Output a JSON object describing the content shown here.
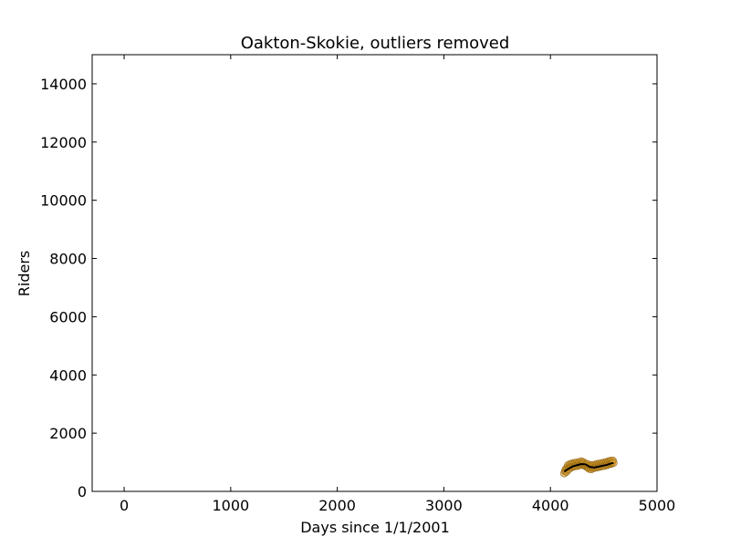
{
  "chart_data": {
    "type": "scatter",
    "title": "Oakton-Skokie, outliers removed",
    "xlabel": "Days since 1/1/2001",
    "ylabel": "Riders",
    "xlim": [
      -300,
      5000
    ],
    "ylim": [
      0,
      15000
    ],
    "x_ticks": [
      0,
      1000,
      2000,
      3000,
      4000,
      5000
    ],
    "y_ticks": [
      0,
      2000,
      4000,
      6000,
      8000,
      10000,
      12000,
      14000
    ],
    "grid": false,
    "legend": "none",
    "colors": {
      "points": "#d49a2a",
      "points_edge": "#8a6110",
      "smooth": "#000000"
    },
    "series": [
      {
        "kind": "scatter",
        "x": [
          4130,
          4137,
          4144,
          4151,
          4158,
          4165,
          4172,
          4179,
          4186,
          4193,
          4200,
          4207,
          4214,
          4221,
          4228,
          4235,
          4242,
          4249,
          4256,
          4263,
          4270,
          4277,
          4284,
          4291,
          4298,
          4305,
          4312,
          4319,
          4326,
          4333,
          4340,
          4347,
          4354,
          4361,
          4368,
          4375,
          4382,
          4389,
          4396,
          4403,
          4410,
          4417,
          4424,
          4431,
          4438,
          4445,
          4452,
          4459,
          4466,
          4473,
          4480,
          4487,
          4494,
          4501,
          4508,
          4515,
          4522,
          4529,
          4536,
          4543,
          4550,
          4557,
          4564,
          4571,
          4578,
          4585,
          4592
        ],
        "y": [
          620,
          700,
          760,
          680,
          820,
          900,
          760,
          850,
          940,
          820,
          880,
          960,
          850,
          900,
          980,
          870,
          920,
          990,
          880,
          940,
          1010,
          900,
          950,
          1030,
          920,
          960,
          1000,
          890,
          930,
          860,
          900,
          940,
          820,
          780,
          860,
          900,
          760,
          830,
          900,
          800,
          850,
          920,
          820,
          880,
          940,
          830,
          880,
          950,
          850,
          900,
          970,
          870,
          920,
          990,
          880,
          940,
          1000,
          900,
          960,
          1030,
          930,
          980,
          1050,
          950,
          1000,
          1060,
          980
        ]
      },
      {
        "kind": "line",
        "x": [
          4130,
          4170,
          4210,
          4250,
          4290,
          4330,
          4370,
          4410,
          4450,
          4490,
          4530,
          4570,
          4592
        ],
        "y": [
          680,
          780,
          860,
          900,
          940,
          930,
          840,
          820,
          850,
          880,
          910,
          960,
          980
        ]
      }
    ]
  }
}
